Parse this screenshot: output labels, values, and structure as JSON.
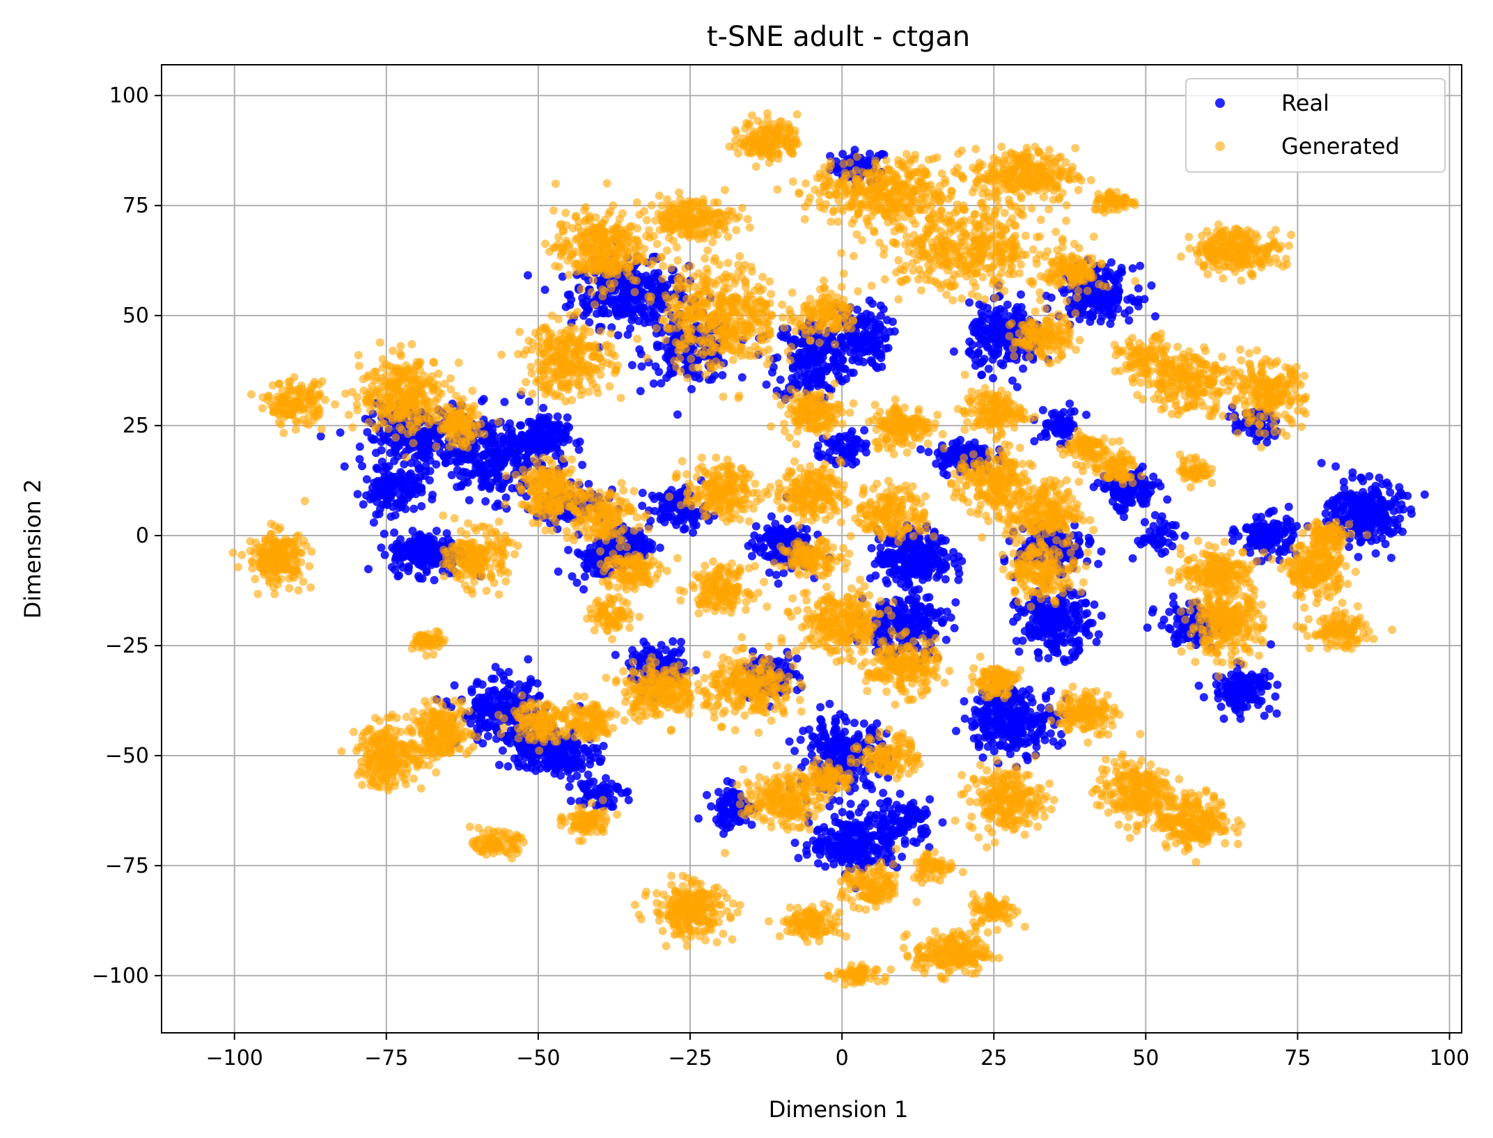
{
  "chart_data": {
    "type": "scatter",
    "title": "t-SNE adult - ctgan",
    "xlabel": "Dimension 1",
    "ylabel": "Dimension 2",
    "xlim": [
      -112,
      102
    ],
    "ylim": [
      -113,
      107
    ],
    "xticks": [
      -100,
      -75,
      -50,
      -25,
      0,
      25,
      50,
      75,
      100
    ],
    "yticks": [
      -100,
      -75,
      -50,
      -25,
      0,
      25,
      50,
      75,
      100
    ],
    "xtick_labels": [
      "−100",
      "−75",
      "−50",
      "−25",
      "0",
      "25",
      "50",
      "75",
      "100"
    ],
    "ytick_labels": [
      "−100",
      "−75",
      "−50",
      "−25",
      "0",
      "25",
      "50",
      "75",
      "100"
    ],
    "grid": true,
    "legend_position": "top-right",
    "series": [
      {
        "name": "Real",
        "color": "#0000ff",
        "opacity": 0.85,
        "clusters": [
          [
            3,
            84,
            4,
            3,
            60
          ],
          [
            -35,
            55,
            8,
            6,
            320
          ],
          [
            -25,
            42,
            6,
            6,
            160
          ],
          [
            -5,
            40,
            5,
            8,
            200
          ],
          [
            3,
            45,
            4,
            6,
            140
          ],
          [
            -70,
            22,
            7,
            6,
            220
          ],
          [
            -74,
            10,
            4,
            4,
            120
          ],
          [
            -57,
            18,
            8,
            8,
            260
          ],
          [
            -50,
            22,
            4,
            4,
            120
          ],
          [
            -68,
            -4,
            5,
            4,
            200
          ],
          [
            -45,
            8,
            5,
            4,
            100
          ],
          [
            -40,
            -5,
            4,
            4,
            80
          ],
          [
            -27,
            6,
            4,
            4,
            100
          ],
          [
            -35,
            -2,
            3,
            3,
            80
          ],
          [
            -10,
            -2,
            4,
            5,
            140
          ],
          [
            12,
            -5,
            5,
            5,
            260
          ],
          [
            20,
            18,
            4,
            3,
            120
          ],
          [
            27,
            45,
            5,
            6,
            220
          ],
          [
            42,
            55,
            5,
            5,
            200
          ],
          [
            36,
            25,
            3,
            3,
            60
          ],
          [
            47,
            10,
            4,
            4,
            120
          ],
          [
            35,
            -3,
            5,
            4,
            160
          ],
          [
            35,
            -20,
            5,
            6,
            220
          ],
          [
            28,
            -42,
            6,
            6,
            260
          ],
          [
            10,
            -20,
            6,
            6,
            200
          ],
          [
            0,
            -50,
            6,
            7,
            220
          ],
          [
            2,
            -70,
            6,
            5,
            220
          ],
          [
            10,
            -65,
            4,
            4,
            100
          ],
          [
            -56,
            -40,
            6,
            6,
            200
          ],
          [
            -50,
            -48,
            5,
            4,
            140
          ],
          [
            -45,
            -50,
            4,
            4,
            100
          ],
          [
            -30,
            -30,
            4,
            4,
            120
          ],
          [
            -18,
            -62,
            3,
            4,
            80
          ],
          [
            -12,
            -32,
            4,
            4,
            100
          ],
          [
            -40,
            -58,
            3,
            3,
            60
          ],
          [
            86,
            5,
            5,
            6,
            260
          ],
          [
            70,
            0,
            4,
            4,
            120
          ],
          [
            66,
            -35,
            4,
            4,
            140
          ],
          [
            57,
            -20,
            4,
            4,
            100
          ],
          [
            68,
            25,
            3,
            3,
            60
          ],
          [
            52,
            0,
            3,
            3,
            40
          ],
          [
            0,
            20,
            3,
            3,
            60
          ]
        ]
      },
      {
        "name": "Generated",
        "color": "#ffa500",
        "opacity": 0.6,
        "clusters": [
          [
            -12,
            90,
            4,
            4,
            160
          ],
          [
            7,
            78,
            10,
            6,
            360
          ],
          [
            30,
            82,
            7,
            5,
            260
          ],
          [
            45,
            76,
            3,
            2,
            60
          ],
          [
            -25,
            72,
            6,
            4,
            200
          ],
          [
            -40,
            65,
            6,
            7,
            300
          ],
          [
            -20,
            50,
            8,
            10,
            420
          ],
          [
            -2,
            50,
            4,
            4,
            120
          ],
          [
            20,
            65,
            12,
            8,
            400
          ],
          [
            38,
            60,
            4,
            4,
            120
          ],
          [
            33,
            45,
            4,
            4,
            140
          ],
          [
            50,
            40,
            4,
            4,
            100
          ],
          [
            65,
            65,
            6,
            4,
            240
          ],
          [
            57,
            35,
            6,
            6,
            200
          ],
          [
            70,
            32,
            5,
            6,
            200
          ],
          [
            -72,
            32,
            6,
            7,
            300
          ],
          [
            -90,
            30,
            4,
            4,
            140
          ],
          [
            -63,
            25,
            3,
            4,
            120
          ],
          [
            -45,
            40,
            6,
            7,
            260
          ],
          [
            -48,
            10,
            4,
            5,
            200
          ],
          [
            -40,
            5,
            5,
            5,
            160
          ],
          [
            -35,
            -8,
            4,
            4,
            120
          ],
          [
            -60,
            -5,
            4,
            5,
            200
          ],
          [
            -93,
            -5,
            4,
            5,
            200
          ],
          [
            -20,
            10,
            5,
            5,
            200
          ],
          [
            -5,
            10,
            4,
            5,
            180
          ],
          [
            8,
            5,
            5,
            5,
            180
          ],
          [
            25,
            12,
            5,
            6,
            200
          ],
          [
            33,
            5,
            5,
            6,
            220
          ],
          [
            10,
            25,
            4,
            4,
            160
          ],
          [
            -5,
            28,
            4,
            4,
            140
          ],
          [
            25,
            28,
            4,
            4,
            140
          ],
          [
            40,
            20,
            3,
            3,
            80
          ],
          [
            45,
            15,
            3,
            3,
            80
          ],
          [
            58,
            15,
            2,
            3,
            60
          ],
          [
            -38,
            -18,
            3,
            3,
            80
          ],
          [
            -30,
            -35,
            5,
            5,
            220
          ],
          [
            -15,
            -35,
            6,
            6,
            240
          ],
          [
            -20,
            -12,
            4,
            4,
            160
          ],
          [
            0,
            -20,
            6,
            6,
            260
          ],
          [
            10,
            -30,
            5,
            5,
            200
          ],
          [
            -5,
            -5,
            4,
            3,
            120
          ],
          [
            33,
            -8,
            5,
            5,
            160
          ],
          [
            40,
            -40,
            4,
            4,
            140
          ],
          [
            25,
            -33,
            3,
            3,
            100
          ],
          [
            63,
            -20,
            5,
            6,
            260
          ],
          [
            62,
            -8,
            5,
            4,
            180
          ],
          [
            78,
            -8,
            4,
            5,
            200
          ],
          [
            82,
            -22,
            4,
            3,
            120
          ],
          [
            80,
            0,
            3,
            3,
            80
          ],
          [
            -75,
            -50,
            4,
            6,
            220
          ],
          [
            -66,
            -45,
            4,
            5,
            200
          ],
          [
            -50,
            -42,
            4,
            4,
            120
          ],
          [
            -42,
            -42,
            4,
            4,
            120
          ],
          [
            -68,
            -24,
            2,
            2,
            60
          ],
          [
            -57,
            -70,
            3,
            2,
            100
          ],
          [
            -42,
            -65,
            3,
            3,
            80
          ],
          [
            -25,
            -85,
            5,
            5,
            240
          ],
          [
            -10,
            -60,
            5,
            5,
            200
          ],
          [
            -2,
            -55,
            3,
            3,
            80
          ],
          [
            8,
            -50,
            4,
            4,
            120
          ],
          [
            -5,
            -88,
            4,
            3,
            120
          ],
          [
            5,
            -80,
            4,
            4,
            120
          ],
          [
            2,
            -100,
            3,
            2,
            60
          ],
          [
            18,
            -95,
            5,
            4,
            200
          ],
          [
            25,
            -85,
            3,
            3,
            80
          ],
          [
            15,
            -75,
            3,
            3,
            60
          ],
          [
            27,
            -60,
            5,
            6,
            220
          ],
          [
            48,
            -58,
            5,
            6,
            220
          ],
          [
            58,
            -65,
            5,
            5,
            220
          ]
        ]
      }
    ]
  }
}
